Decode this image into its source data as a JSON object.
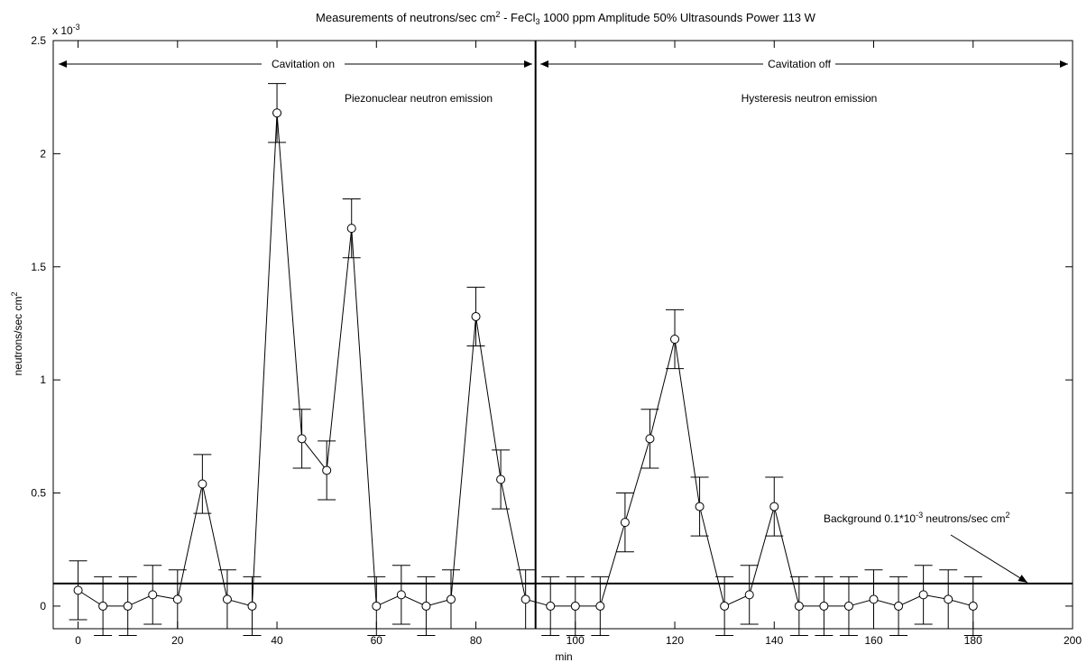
{
  "chart_data": {
    "type": "line",
    "title": "Measurements of neutrons/sec cm",
    "title_sup1": "2",
    "title_mid": " - FeCl",
    "title_sub": "3",
    "title_rest": " 1000 ppm Amplitude 50%  Ultrasounds Power 113 W",
    "xlabel": "min",
    "ylabel": "neutrons/sec cm",
    "ylabel_sup": "2",
    "y_exponent_base": "x 10",
    "y_exponent_power": "-3",
    "xlim": [
      -5,
      200
    ],
    "ylim": [
      -0.1,
      2.5
    ],
    "xticks": [
      0,
      20,
      40,
      60,
      80,
      100,
      120,
      140,
      160,
      180,
      200
    ],
    "xtick_labels": [
      "0",
      "20",
      "40",
      "60",
      "80",
      "100",
      "120",
      "140",
      "160",
      "180",
      "200"
    ],
    "yticks": [
      0,
      0.5,
      1,
      1.5,
      2,
      2.5
    ],
    "ytick_labels": [
      "0",
      "0.5",
      "1",
      "1.5",
      "2",
      "2.5"
    ],
    "grid": false,
    "series": [
      {
        "x": [
          0,
          5,
          10,
          15,
          20,
          25,
          30,
          35,
          40,
          45,
          50,
          55,
          60,
          65,
          70,
          75,
          80,
          85,
          90,
          95,
          100,
          105,
          110,
          115,
          120,
          125,
          130,
          135,
          140,
          145,
          150,
          155,
          160,
          165,
          170,
          175,
          180
        ],
        "y": [
          0.07,
          0,
          0,
          0.05,
          0.03,
          0.54,
          0.03,
          0,
          2.18,
          0.74,
          0.6,
          1.67,
          0,
          0.05,
          0,
          0.03,
          1.28,
          0.56,
          0.03,
          0,
          0,
          0,
          0.37,
          0.74,
          1.18,
          0.44,
          0,
          0.05,
          0.44,
          0,
          0,
          0,
          0.03,
          0,
          0.05,
          0.03,
          0
        ],
        "error": [
          0.13,
          0.13,
          0.13,
          0.13,
          0.13,
          0.13,
          0.13,
          0.13,
          0.13,
          0.13,
          0.13,
          0.13,
          0.13,
          0.13,
          0.13,
          0.13,
          0.13,
          0.13,
          0.13,
          0.13,
          0.13,
          0.13,
          0.13,
          0.13,
          0.13,
          0.13,
          0.13,
          0.13,
          0.13,
          0.13,
          0.13,
          0.13,
          0.13,
          0.13,
          0.13,
          0.13,
          0.13
        ],
        "marker": "circle",
        "color": "#000000"
      }
    ],
    "background_level": 0.1,
    "divider_x": 92,
    "annotations": {
      "cavitation_on": "Cavitation on",
      "cavitation_off": "Cavitation off",
      "piezonuclear": "Piezonuclear neutron emission",
      "hysteresis": "Hysteresis neutron emission",
      "background_prefix": "Background 0.1*10",
      "background_exp": "-3",
      "background_suffix": " neutrons/sec cm",
      "background_sup": "2"
    }
  }
}
